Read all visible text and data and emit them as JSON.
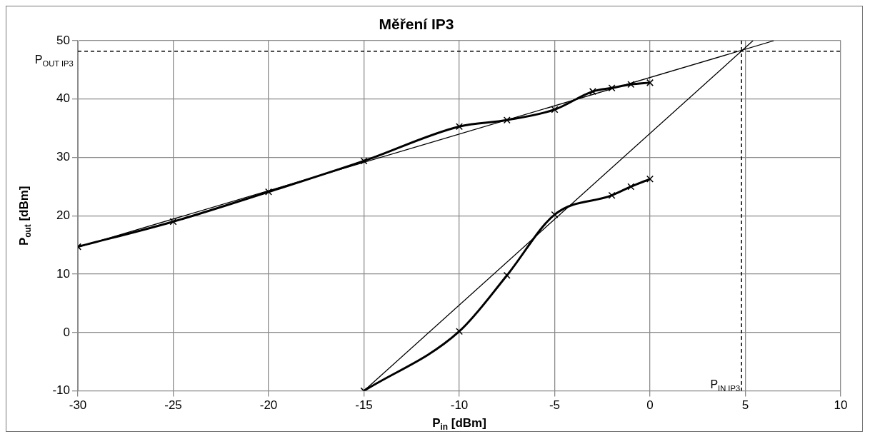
{
  "chart_data": {
    "type": "line",
    "title": "Měření IP3",
    "xlabel": "P$_{in}$ [dBm]",
    "ylabel": "P$_{out}$ [dBm]",
    "xlim": [
      -30,
      10
    ],
    "xticks": [
      -30,
      -25,
      -20,
      -15,
      -10,
      -5,
      0,
      5,
      10
    ],
    "ylim": [
      -10,
      50
    ],
    "yticks": [
      -10,
      0,
      10,
      20,
      30,
      40,
      50
    ],
    "grid": true,
    "legend": false,
    "series": [
      {
        "color": "#000000",
        "marker": "cross",
        "x": [
          -30,
          -25,
          -20,
          -15,
          -10,
          -7.5,
          -5,
          -3,
          -2,
          -1,
          0
        ],
        "values": [
          14.7,
          19,
          24.1,
          29.4,
          35.3,
          36.4,
          38.2,
          41.3,
          41.9,
          42.5,
          42.8
        ]
      },
      {
        "color": "#000000",
        "marker": "cross",
        "x": [
          -15,
          -10,
          -7.5,
          -5,
          -2,
          -1,
          0
        ],
        "values": [
          -10,
          0.2,
          9.8,
          20.2,
          23.5,
          25,
          26.3
        ]
      },
      {
        "color": "#000000",
        "marker": "none",
        "x": [
          -30,
          6.5
        ],
        "values": [
          14.6,
          50
        ]
      },
      {
        "color": "#000000",
        "marker": "none",
        "x": [
          -15,
          5.4
        ],
        "values": [
          -10,
          50
        ]
      }
    ],
    "ref_lines": [
      {
        "axis": "y",
        "value": 48.2,
        "label": "P$_{OUT IP3}$",
        "line_style": "dashed",
        "color": "#000000"
      },
      {
        "axis": "x",
        "value": 4.8,
        "label": "P$_{IN IP3}$",
        "line_style": "dashed",
        "color": "#000000"
      }
    ]
  }
}
